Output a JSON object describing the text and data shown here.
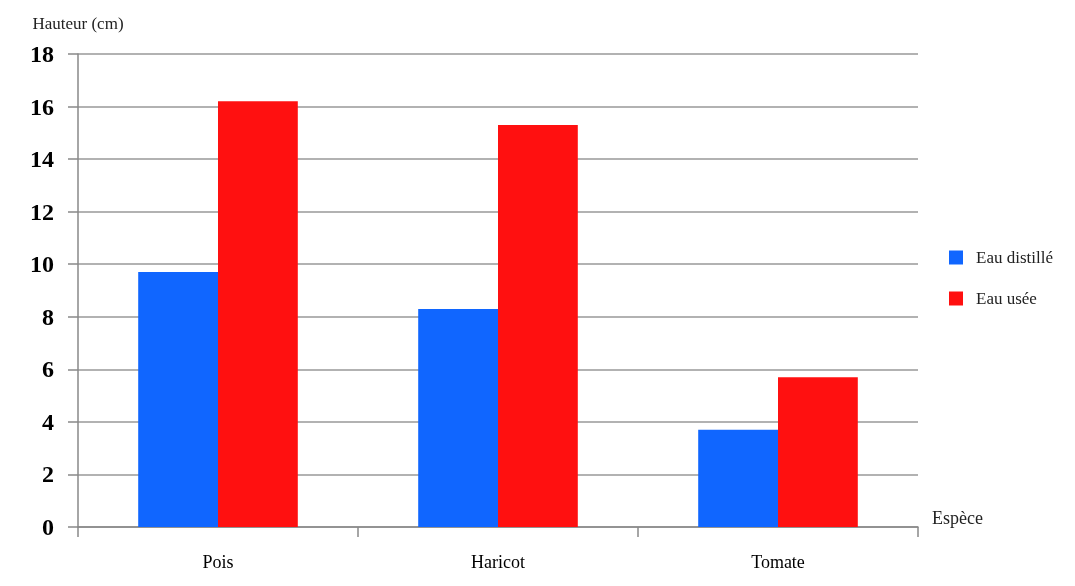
{
  "chart_data": {
    "type": "bar",
    "xlabel": "Espèce",
    "ylabel": "Hauteur (cm)",
    "categories": [
      "Pois",
      "Haricot",
      "Tomate"
    ],
    "series": [
      {
        "name": "Eau distillé",
        "color": "#1066ff",
        "values": [
          9.7,
          8.3,
          3.7
        ]
      },
      {
        "name": "Eau usée",
        "color": "#ff1010",
        "values": [
          16.2,
          15.3,
          5.7
        ]
      }
    ],
    "ylim": [
      0,
      18
    ],
    "yticks": [
      0,
      2,
      4,
      6,
      8,
      10,
      12,
      14,
      16,
      18
    ],
    "grid": "y",
    "legend": "right"
  }
}
